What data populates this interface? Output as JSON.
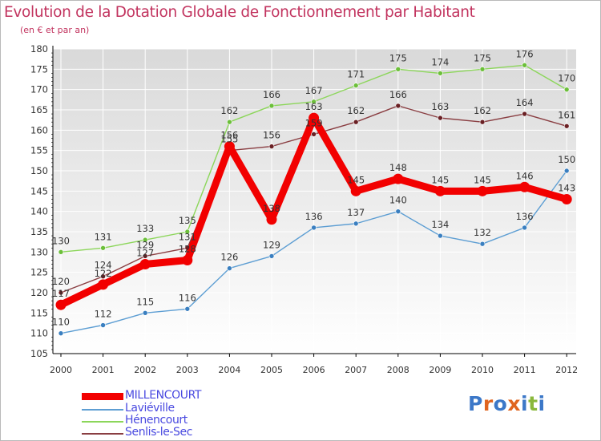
{
  "header": {
    "title": "Evolution de la Dotation Globale de Fonctionnement par Habitant",
    "subtitle": "(en € et par an)"
  },
  "logo": {
    "text": "Proxiti",
    "letter_colors": [
      "#3c78c8",
      "#e0641e",
      "#3c78c8",
      "#e0641e",
      "#3c78c8",
      "#8ab83c",
      "#3c78c8"
    ]
  },
  "colors": {
    "plot_background_top": "#d9d9d9",
    "plot_background_bottom": "#ffffff",
    "grid": "#ffffff",
    "axis": "#000000",
    "tick_text": "#333333",
    "label_text": "#333333"
  },
  "chart_data": {
    "type": "line",
    "title": "Evolution de la Dotation Globale de Fonctionnement par Habitant",
    "subtitle": "(en € et par an)",
    "xlabel": "",
    "ylabel": "",
    "ylim": [
      105,
      180
    ],
    "y_ticks": [
      105,
      110,
      115,
      120,
      125,
      130,
      135,
      140,
      145,
      150,
      155,
      160,
      165,
      170,
      175,
      180
    ],
    "grid": true,
    "categories": [
      "2000",
      "2001",
      "2002",
      "2003",
      "2004",
      "2005",
      "2006",
      "2007",
      "2008",
      "2009",
      "2010",
      "2011",
      "2012"
    ],
    "series": [
      {
        "name": "Laviéville",
        "color": "#5d9ed3",
        "point_color": "#3a7fc0",
        "emphasis": false,
        "values": [
          110,
          112,
          115,
          116,
          126,
          129,
          136,
          137,
          140,
          134,
          132,
          136,
          150
        ]
      },
      {
        "name": "Hénencourt",
        "color": "#8cd65a",
        "point_color": "#6cbf3a",
        "emphasis": false,
        "values": [
          130,
          131,
          133,
          135,
          162,
          166,
          167,
          171,
          175,
          174,
          175,
          176,
          170
        ]
      },
      {
        "name": "Senlis-le-Sec",
        "color": "#8a3e42",
        "point_color": "#6a2024",
        "emphasis": false,
        "values": [
          120,
          124,
          129,
          131,
          155,
          156,
          159,
          162,
          166,
          163,
          162,
          164,
          161
        ]
      },
      {
        "name": "MILLENCOURT",
        "color": "#f20000",
        "point_color": "#f20000",
        "emphasis": true,
        "values": [
          117,
          122,
          127,
          128,
          156,
          138,
          163,
          145,
          148,
          145,
          145,
          146,
          143
        ]
      }
    ],
    "legend_order": [
      "MILLENCOURT",
      "Laviéville",
      "Hénencourt",
      "Senlis-le-Sec"
    ],
    "legend_position": "bottom-left"
  }
}
